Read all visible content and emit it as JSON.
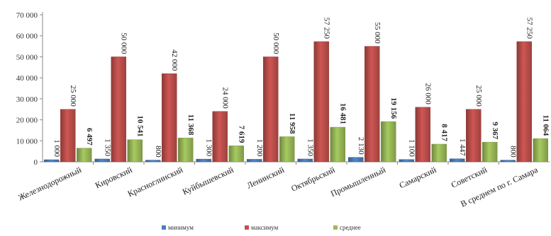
{
  "chart_data": {
    "type": "bar",
    "categories": [
      "Железнодорожный",
      "Кировский",
      "Красноглинский",
      "Куйбышевский",
      "Ленинский",
      "Октябрьский",
      "Промышленный",
      "Самарский",
      "Советский",
      "В среднем по г. Самара"
    ],
    "series": [
      {
        "name": "минимум",
        "color": "#4a7ebb",
        "values": [
          1000,
          1350,
          800,
          1300,
          1200,
          1350,
          2130,
          1100,
          1447,
          800
        ],
        "labels": [
          "1 000",
          "1 350",
          "800",
          "1 300",
          "1 200",
          "1 350",
          "2 130",
          "1 100",
          "1 447",
          "800"
        ]
      },
      {
        "name": "максимум",
        "color": "#c0504d",
        "values": [
          25000,
          50000,
          42000,
          24000,
          50000,
          57250,
          55000,
          26000,
          25000,
          57250
        ],
        "labels": [
          "25 000",
          "50 000",
          "42 000",
          "24 000",
          "50 000",
          "57 250",
          "55 000",
          "26 000",
          "25 000",
          "57 250"
        ]
      },
      {
        "name": "среднее",
        "color": "#9bbb59",
        "values": [
          6497,
          10541,
          11368,
          7619,
          11958,
          16481,
          19156,
          8417,
          9367,
          11064
        ],
        "labels": [
          "6 497",
          "10 541",
          "11 368",
          "7 619",
          "11 958",
          "16 481",
          "19 156",
          "8 417",
          "9 367",
          "11 064"
        ]
      }
    ],
    "ylim": [
      0,
      70000
    ],
    "yticks": [
      0,
      10000,
      20000,
      30000,
      40000,
      50000,
      60000,
      70000
    ],
    "ytick_labels": [
      "0",
      "10 000",
      "20 000",
      "30 000",
      "40 000",
      "50 000",
      "60 000",
      "70 000"
    ],
    "legend_position": "bottom",
    "grid": false
  }
}
